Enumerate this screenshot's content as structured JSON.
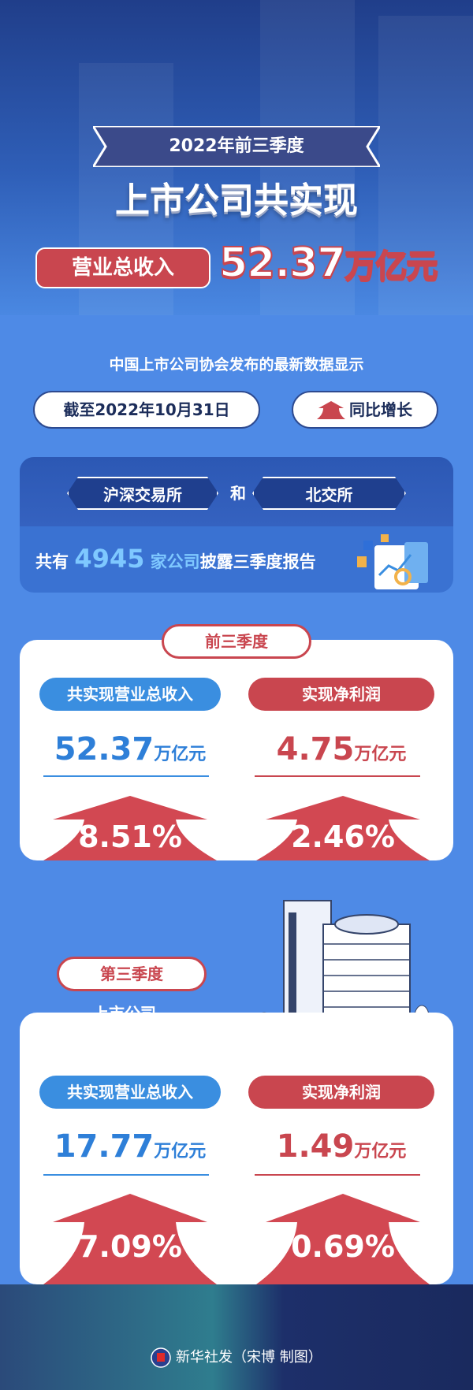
{
  "header": {
    "ribbon": "2022年前三季度",
    "title": "上市公司共实现",
    "revenue_label": "营业总收入",
    "revenue_value": "52.37",
    "revenue_unit": "万亿元"
  },
  "intro": {
    "source": "中国上市公司协会发布的最新数据显示",
    "date": "截至2022年10月31日",
    "growth_label": "同比增长"
  },
  "exchanges": {
    "first": "沪深交易所",
    "and": "和",
    "second": "北交所",
    "prefix": "共有",
    "count": "4945",
    "middle": "家公司",
    "suffix": "披露三季度报告"
  },
  "sections": [
    {
      "tag": "前三季度",
      "revenue_label": "共实现营业总收入",
      "revenue_value": "52.37",
      "profit_label": "实现净利润",
      "profit_value": "4.75",
      "unit": "万亿元",
      "revenue_growth": "8.51%",
      "profit_growth": "2.46%"
    },
    {
      "tag": "第三季度",
      "subtitle": "上市公司",
      "revenue_label": "共实现营业总收入",
      "revenue_value": "17.77",
      "profit_label": "实现净利润",
      "profit_value": "1.49",
      "unit": "万亿元",
      "revenue_growth": "7.09%",
      "profit_growth": "0.69%"
    }
  ],
  "footer": {
    "credit": "新华社发（宋博 制图）"
  },
  "colors": {
    "red": "#c9464f",
    "blue": "#3a8ee0",
    "background": "#4e8ae6"
  }
}
